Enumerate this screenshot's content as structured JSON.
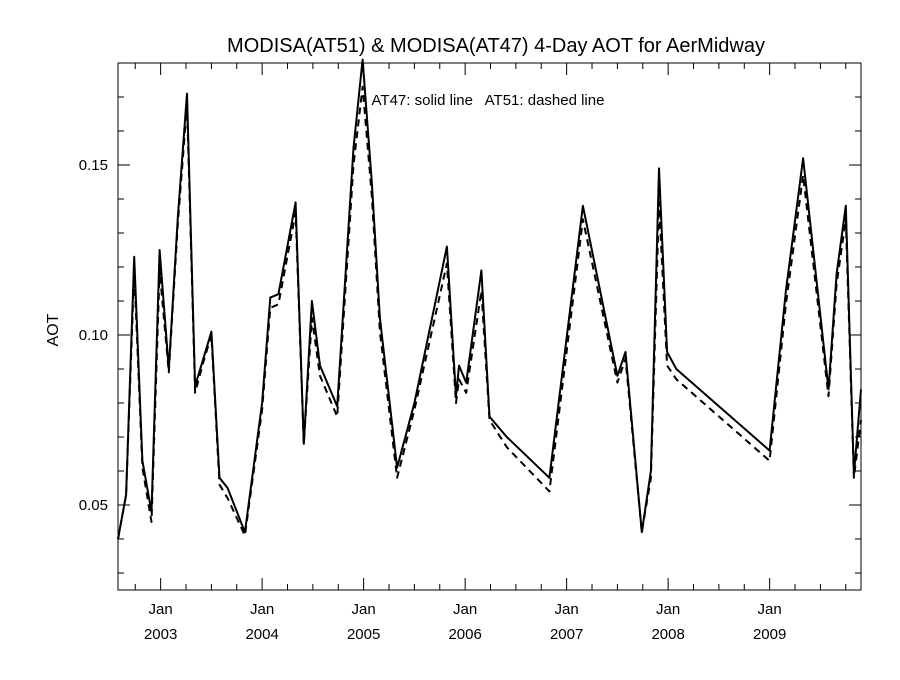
{
  "chart_data": {
    "type": "line",
    "title": "MODISA(AT51) & MODISA(AT47) 4-Day AOT for AerMidway",
    "ylabel": "AOT",
    "xlabel": "",
    "annotation": "AT47: solid line   AT51: dashed line",
    "xlim": [
      2002.58,
      2009.9
    ],
    "ylim": [
      0.025,
      0.18
    ],
    "grid": false,
    "x_ticks": [
      {
        "x": 2003.0,
        "month": "Jan",
        "year": "2003"
      },
      {
        "x": 2004.0,
        "month": "Jan",
        "year": "2004"
      },
      {
        "x": 2005.0,
        "month": "Jan",
        "year": "2005"
      },
      {
        "x": 2006.0,
        "month": "Jan",
        "year": "2006"
      },
      {
        "x": 2007.0,
        "month": "Jan",
        "year": "2007"
      },
      {
        "x": 2008.0,
        "month": "Jan",
        "year": "2008"
      },
      {
        "x": 2009.0,
        "month": "Jan",
        "year": "2009"
      }
    ],
    "y_ticks": [
      {
        "value": 0.05,
        "label": "0.05"
      },
      {
        "value": 0.1,
        "label": "0.10"
      },
      {
        "value": 0.15,
        "label": "0.15"
      }
    ],
    "y_minor_step": 0.01,
    "series": [
      {
        "style": "solid",
        "color": "#000000",
        "points": [
          [
            2002.58,
            0.04
          ],
          [
            2002.66,
            0.053
          ],
          [
            2002.74,
            0.123
          ],
          [
            2002.82,
            0.063
          ],
          [
            2002.91,
            0.048
          ],
          [
            2002.99,
            0.125
          ],
          [
            2003.08,
            0.09
          ],
          [
            2003.17,
            0.135
          ],
          [
            2003.26,
            0.171
          ],
          [
            2003.34,
            0.085
          ],
          [
            2003.42,
            0.093
          ],
          [
            2003.5,
            0.101
          ],
          [
            2003.58,
            0.058
          ],
          [
            2003.66,
            0.055
          ],
          [
            2003.83,
            0.042
          ],
          [
            2004.0,
            0.08
          ],
          [
            2004.08,
            0.111
          ],
          [
            2004.16,
            0.112
          ],
          [
            2004.33,
            0.139
          ],
          [
            2004.41,
            0.068
          ],
          [
            2004.49,
            0.11
          ],
          [
            2004.57,
            0.091
          ],
          [
            2004.74,
            0.079
          ],
          [
            2004.9,
            0.155
          ],
          [
            2004.99,
            0.181
          ],
          [
            2005.08,
            0.145
          ],
          [
            2005.16,
            0.105
          ],
          [
            2005.33,
            0.061
          ],
          [
            2005.5,
            0.08
          ],
          [
            2005.82,
            0.126
          ],
          [
            2005.91,
            0.082
          ],
          [
            2005.94,
            0.091
          ],
          [
            2006.01,
            0.086
          ],
          [
            2006.16,
            0.119
          ],
          [
            2006.24,
            0.076
          ],
          [
            2006.41,
            0.07
          ],
          [
            2006.83,
            0.058
          ],
          [
            2007.16,
            0.138
          ],
          [
            2007.5,
            0.088
          ],
          [
            2007.58,
            0.095
          ],
          [
            2007.74,
            0.042
          ],
          [
            2007.83,
            0.06
          ],
          [
            2007.91,
            0.149
          ],
          [
            2007.99,
            0.095
          ],
          [
            2008.08,
            0.09
          ],
          [
            2009.0,
            0.066
          ],
          [
            2009.16,
            0.113
          ],
          [
            2009.33,
            0.152
          ],
          [
            2009.58,
            0.084
          ],
          [
            2009.66,
            0.118
          ],
          [
            2009.75,
            0.138
          ],
          [
            2009.83,
            0.059
          ],
          [
            2009.9,
            0.084
          ]
        ]
      },
      {
        "style": "dashed",
        "color": "#000000",
        "points": [
          [
            2002.58,
            0.04
          ],
          [
            2002.66,
            0.053
          ],
          [
            2002.74,
            0.119
          ],
          [
            2002.82,
            0.061
          ],
          [
            2002.91,
            0.045
          ],
          [
            2002.99,
            0.119
          ],
          [
            2003.08,
            0.089
          ],
          [
            2003.17,
            0.133
          ],
          [
            2003.26,
            0.168
          ],
          [
            2003.34,
            0.083
          ],
          [
            2003.42,
            0.092
          ],
          [
            2003.5,
            0.1
          ],
          [
            2003.58,
            0.056
          ],
          [
            2003.66,
            0.052
          ],
          [
            2003.83,
            0.041
          ],
          [
            2004.0,
            0.078
          ],
          [
            2004.08,
            0.108
          ],
          [
            2004.16,
            0.109
          ],
          [
            2004.33,
            0.136
          ],
          [
            2004.41,
            0.068
          ],
          [
            2004.49,
            0.105
          ],
          [
            2004.57,
            0.088
          ],
          [
            2004.74,
            0.076
          ],
          [
            2004.9,
            0.15
          ],
          [
            2004.99,
            0.173
          ],
          [
            2005.08,
            0.141
          ],
          [
            2005.16,
            0.101
          ],
          [
            2005.33,
            0.058
          ],
          [
            2005.5,
            0.078
          ],
          [
            2005.82,
            0.121
          ],
          [
            2005.91,
            0.08
          ],
          [
            2005.94,
            0.087
          ],
          [
            2006.01,
            0.083
          ],
          [
            2006.16,
            0.113
          ],
          [
            2006.24,
            0.075
          ],
          [
            2006.41,
            0.067
          ],
          [
            2006.83,
            0.054
          ],
          [
            2007.16,
            0.134
          ],
          [
            2007.5,
            0.086
          ],
          [
            2007.58,
            0.093
          ],
          [
            2007.74,
            0.042
          ],
          [
            2007.83,
            0.058
          ],
          [
            2007.91,
            0.139
          ],
          [
            2007.99,
            0.091
          ],
          [
            2008.08,
            0.087
          ],
          [
            2009.0,
            0.063
          ],
          [
            2009.16,
            0.109
          ],
          [
            2009.33,
            0.147
          ],
          [
            2009.58,
            0.082
          ],
          [
            2009.66,
            0.115
          ],
          [
            2009.75,
            0.134
          ],
          [
            2009.83,
            0.058
          ],
          [
            2009.9,
            0.075
          ]
        ]
      }
    ]
  }
}
